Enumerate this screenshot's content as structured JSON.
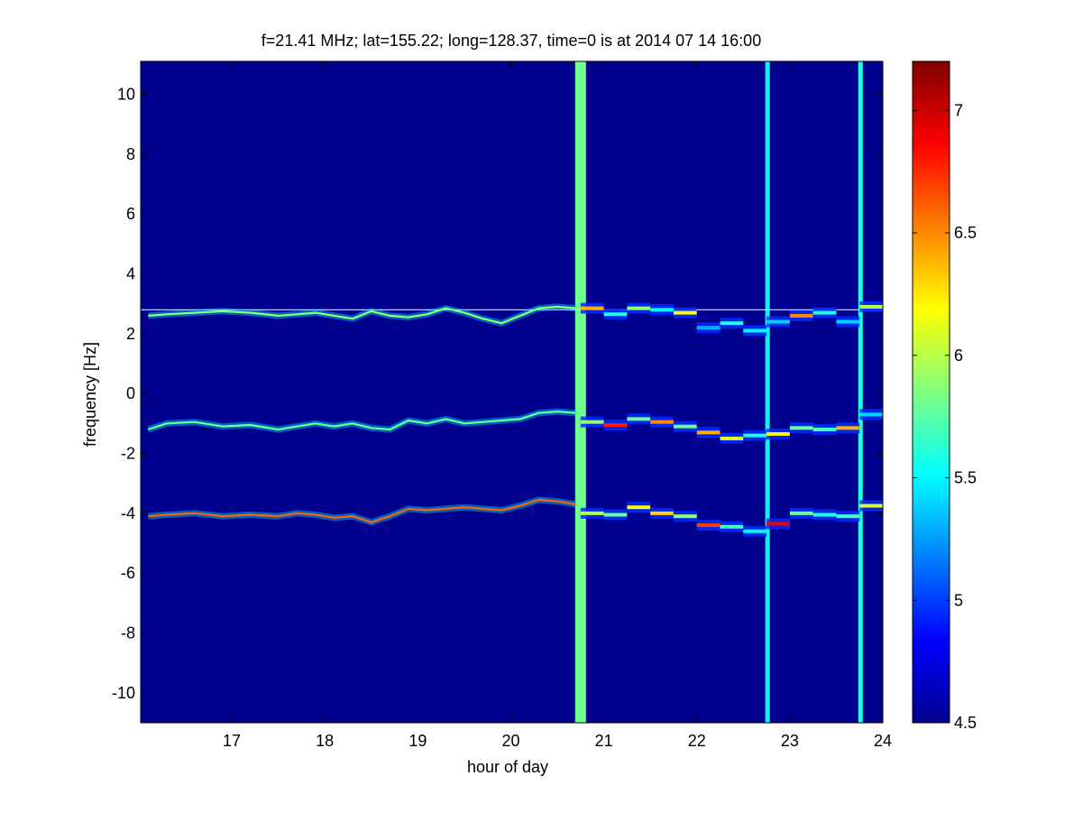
{
  "chart_data": {
    "type": "heatmap",
    "title": "f=21.41 MHz;  lat=155.22; long=128.37, time=0 is at 2014 07 14 16:00",
    "xlabel": "hour of day",
    "ylabel": "frequency [Hz]",
    "xlim": [
      16.02,
      24.0
    ],
    "ylim": [
      -11.0,
      11.1
    ],
    "x_ticks": [
      17,
      18,
      19,
      20,
      21,
      22,
      23,
      24
    ],
    "y_ticks": [
      -10,
      -8,
      -6,
      -4,
      -2,
      0,
      2,
      4,
      6,
      8,
      10
    ],
    "background_value": 4.5,
    "colorbar": {
      "range": [
        4.5,
        7.2
      ],
      "ticks": [
        4.5,
        5,
        5.5,
        6,
        6.5,
        7
      ],
      "colormap": "jet"
    },
    "reference_line": {
      "y": 2.8,
      "color": "#d8f0f8"
    },
    "traces": [
      {
        "name": "upper",
        "points": [
          [
            16.1,
            2.6
          ],
          [
            16.3,
            2.65
          ],
          [
            16.6,
            2.7
          ],
          [
            16.9,
            2.75
          ],
          [
            17.2,
            2.7
          ],
          [
            17.5,
            2.6
          ],
          [
            17.7,
            2.65
          ],
          [
            17.9,
            2.7
          ],
          [
            18.1,
            2.6
          ],
          [
            18.3,
            2.5
          ],
          [
            18.5,
            2.75
          ],
          [
            18.7,
            2.6
          ],
          [
            18.9,
            2.55
          ],
          [
            19.1,
            2.65
          ],
          [
            19.3,
            2.85
          ],
          [
            19.5,
            2.7
          ],
          [
            19.7,
            2.5
          ],
          [
            19.9,
            2.35
          ],
          [
            20.1,
            2.6
          ],
          [
            20.3,
            2.85
          ],
          [
            20.5,
            2.9
          ],
          [
            20.7,
            2.85
          ]
        ],
        "value": 5.9
      },
      {
        "name": "middle",
        "points": [
          [
            16.1,
            -1.2
          ],
          [
            16.3,
            -1.0
          ],
          [
            16.6,
            -0.95
          ],
          [
            16.9,
            -1.1
          ],
          [
            17.2,
            -1.05
          ],
          [
            17.5,
            -1.2
          ],
          [
            17.7,
            -1.1
          ],
          [
            17.9,
            -1.0
          ],
          [
            18.1,
            -1.1
          ],
          [
            18.3,
            -1.0
          ],
          [
            18.5,
            -1.15
          ],
          [
            18.7,
            -1.2
          ],
          [
            18.9,
            -0.9
          ],
          [
            19.1,
            -1.0
          ],
          [
            19.3,
            -0.85
          ],
          [
            19.5,
            -1.0
          ],
          [
            19.7,
            -0.95
          ],
          [
            19.9,
            -0.9
          ],
          [
            20.1,
            -0.85
          ],
          [
            20.3,
            -0.65
          ],
          [
            20.5,
            -0.6
          ],
          [
            20.7,
            -0.65
          ]
        ],
        "value": 5.8
      },
      {
        "name": "lower",
        "points": [
          [
            16.1,
            -4.1
          ],
          [
            16.3,
            -4.05
          ],
          [
            16.6,
            -4.0
          ],
          [
            16.9,
            -4.1
          ],
          [
            17.2,
            -4.05
          ],
          [
            17.5,
            -4.1
          ],
          [
            17.7,
            -4.0
          ],
          [
            17.9,
            -4.05
          ],
          [
            18.1,
            -4.15
          ],
          [
            18.3,
            -4.1
          ],
          [
            18.5,
            -4.3
          ],
          [
            18.7,
            -4.1
          ],
          [
            18.9,
            -3.85
          ],
          [
            19.1,
            -3.9
          ],
          [
            19.3,
            -3.85
          ],
          [
            19.5,
            -3.8
          ],
          [
            19.7,
            -3.85
          ],
          [
            19.9,
            -3.9
          ],
          [
            20.1,
            -3.75
          ],
          [
            20.3,
            -3.55
          ],
          [
            20.5,
            -3.6
          ],
          [
            20.7,
            -3.7
          ]
        ],
        "value": 6.6
      }
    ],
    "segments": [
      {
        "x0": 20.75,
        "x1": 21.0,
        "y": 2.85,
        "v": 6.4
      },
      {
        "x0": 21.0,
        "x1": 21.25,
        "y": 2.65,
        "v": 5.6
      },
      {
        "x0": 21.25,
        "x1": 21.5,
        "y": 2.85,
        "v": 5.9
      },
      {
        "x0": 21.5,
        "x1": 21.75,
        "y": 2.8,
        "v": 5.5
      },
      {
        "x0": 21.75,
        "x1": 22.0,
        "y": 2.7,
        "v": 6.2
      },
      {
        "x0": 22.0,
        "x1": 22.25,
        "y": 2.2,
        "v": 5.3
      },
      {
        "x0": 22.25,
        "x1": 22.5,
        "y": 2.35,
        "v": 5.6
      },
      {
        "x0": 22.5,
        "x1": 22.75,
        "y": 2.1,
        "v": 5.5
      },
      {
        "x0": 22.75,
        "x1": 23.0,
        "y": 2.4,
        "v": 5.4
      },
      {
        "x0": 23.0,
        "x1": 23.25,
        "y": 2.6,
        "v": 6.5
      },
      {
        "x0": 23.25,
        "x1": 23.5,
        "y": 2.7,
        "v": 5.6
      },
      {
        "x0": 23.5,
        "x1": 23.75,
        "y": 2.4,
        "v": 5.4
      },
      {
        "x0": 23.75,
        "x1": 24.0,
        "y": 2.9,
        "v": 6.0
      },
      {
        "x0": 20.75,
        "x1": 21.0,
        "y": -0.95,
        "v": 5.9
      },
      {
        "x0": 21.0,
        "x1": 21.25,
        "y": -1.05,
        "v": 6.8
      },
      {
        "x0": 21.25,
        "x1": 21.5,
        "y": -0.85,
        "v": 5.8
      },
      {
        "x0": 21.5,
        "x1": 21.75,
        "y": -0.95,
        "v": 6.5
      },
      {
        "x0": 21.75,
        "x1": 22.0,
        "y": -1.1,
        "v": 5.8
      },
      {
        "x0": 22.0,
        "x1": 22.25,
        "y": -1.3,
        "v": 6.4
      },
      {
        "x0": 22.25,
        "x1": 22.5,
        "y": -1.5,
        "v": 6.1
      },
      {
        "x0": 22.5,
        "x1": 22.75,
        "y": -1.4,
        "v": 5.6
      },
      {
        "x0": 22.75,
        "x1": 23.0,
        "y": -1.35,
        "v": 6.2
      },
      {
        "x0": 23.0,
        "x1": 23.25,
        "y": -1.15,
        "v": 5.8
      },
      {
        "x0": 23.25,
        "x1": 23.5,
        "y": -1.2,
        "v": 5.7
      },
      {
        "x0": 23.5,
        "x1": 23.75,
        "y": -1.15,
        "v": 6.4
      },
      {
        "x0": 23.75,
        "x1": 24.0,
        "y": -0.7,
        "v": 5.4
      },
      {
        "x0": 20.75,
        "x1": 21.0,
        "y": -4.0,
        "v": 6.0
      },
      {
        "x0": 21.0,
        "x1": 21.25,
        "y": -4.05,
        "v": 5.8
      },
      {
        "x0": 21.25,
        "x1": 21.5,
        "y": -3.8,
        "v": 6.2
      },
      {
        "x0": 21.5,
        "x1": 21.75,
        "y": -4.0,
        "v": 6.3
      },
      {
        "x0": 21.75,
        "x1": 22.0,
        "y": -4.1,
        "v": 5.9
      },
      {
        "x0": 22.0,
        "x1": 22.25,
        "y": -4.4,
        "v": 6.7
      },
      {
        "x0": 22.25,
        "x1": 22.5,
        "y": -4.45,
        "v": 5.7
      },
      {
        "x0": 22.5,
        "x1": 22.75,
        "y": -4.6,
        "v": 5.5
      },
      {
        "x0": 22.75,
        "x1": 23.0,
        "y": -4.35,
        "v": 6.9
      },
      {
        "x0": 23.0,
        "x1": 23.25,
        "y": -4.0,
        "v": 5.8
      },
      {
        "x0": 23.25,
        "x1": 23.5,
        "y": -4.05,
        "v": 5.6
      },
      {
        "x0": 23.5,
        "x1": 23.75,
        "y": -4.1,
        "v": 5.7
      },
      {
        "x0": 23.75,
        "x1": 24.0,
        "y": -3.75,
        "v": 6.1
      }
    ],
    "bright_columns": [
      {
        "x": 20.75,
        "v": 5.8
      },
      {
        "x": 22.76,
        "v": 5.5
      },
      {
        "x": 23.76,
        "v": 5.6
      }
    ]
  }
}
